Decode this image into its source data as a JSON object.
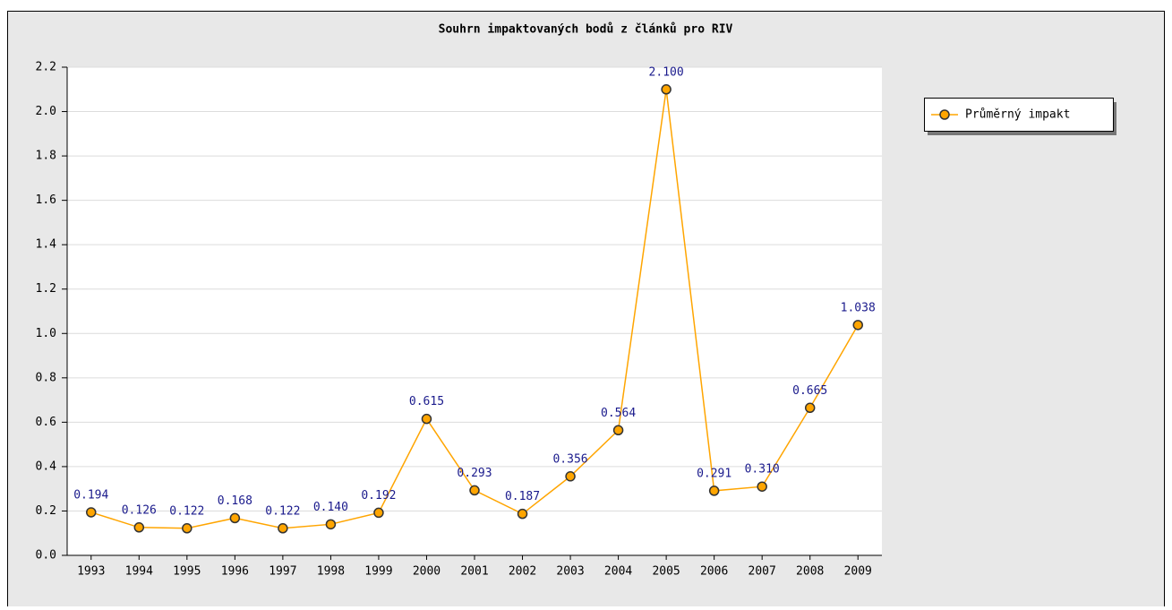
{
  "chart_data": {
    "type": "line",
    "title": "Souhrn impaktovaných bodů z článků pro RIV",
    "categories": [
      "1993",
      "1994",
      "1995",
      "1996",
      "1997",
      "1998",
      "1999",
      "2000",
      "2001",
      "2002",
      "2003",
      "2004",
      "2005",
      "2006",
      "2007",
      "2008",
      "2009"
    ],
    "series": [
      {
        "name": "Průměrný impakt",
        "color": "#ffa500",
        "values": [
          0.194,
          0.126,
          0.122,
          0.168,
          0.122,
          0.14,
          0.192,
          0.615,
          0.293,
          0.187,
          0.356,
          0.564,
          2.1,
          0.291,
          0.31,
          0.665,
          1.038
        ],
        "value_labels": [
          "0.194",
          "0.126",
          "0.122",
          "0.168",
          "0.122",
          "0.140",
          "0.192",
          "0.615",
          "0.293",
          "0.187",
          "0.356",
          "0.564",
          "2.100",
          "0.291",
          "0.310",
          "0.665",
          "1.038"
        ]
      }
    ],
    "ylim": [
      0,
      2.2
    ],
    "yticks": [
      {
        "value": 0,
        "label": "0.0"
      },
      0.2,
      0.4,
      0.6,
      0.8,
      {
        "value": 1,
        "label": "1.0"
      },
      1.2,
      1.4,
      1.6,
      1.8,
      {
        "value": 2,
        "label": "2.0"
      },
      2.2
    ],
    "grid": true,
    "legend": "right"
  }
}
